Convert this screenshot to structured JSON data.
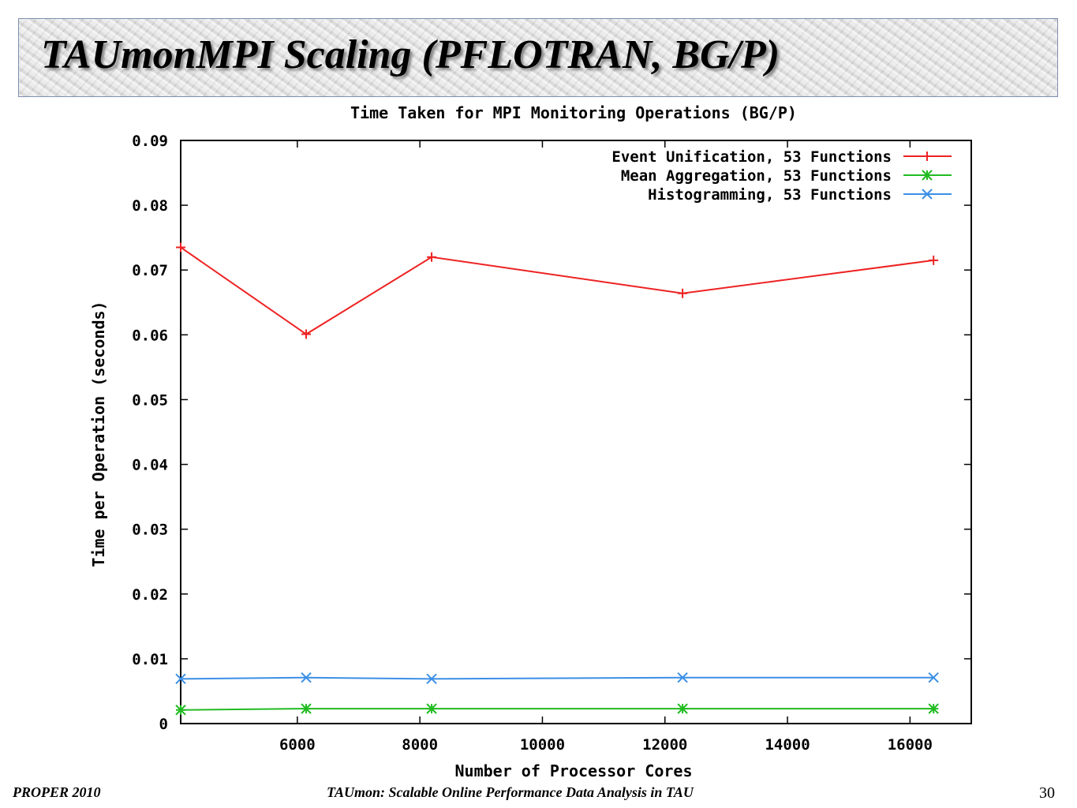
{
  "slide": {
    "title": "TAUmonMPI Scaling (PFLOTRAN, BG/P)",
    "footer_left": "PROPER 2010",
    "footer_center": "TAUmon: Scalable Online Performance Data Analysis in TAU",
    "page_number": "30"
  },
  "chart_data": {
    "type": "line",
    "title": "Time Taken for MPI Monitoring Operations (BG/P)",
    "xlabel": "Number of Processor Cores",
    "ylabel": "Time per Operation (seconds)",
    "xlim": [
      4096,
      17000
    ],
    "ylim": [
      0,
      0.09
    ],
    "xticks": [
      6000,
      8000,
      10000,
      12000,
      14000,
      16000
    ],
    "xtick_labels": [
      "6000",
      "8000",
      "10000",
      "12000",
      "14000",
      "16000"
    ],
    "yticks": [
      0,
      0.01,
      0.02,
      0.03,
      0.04,
      0.05,
      0.06,
      0.07,
      0.08,
      0.09
    ],
    "ytick_labels": [
      "0",
      "0.01",
      "0.02",
      "0.03",
      "0.04",
      "0.05",
      "0.06",
      "0.07",
      "0.08",
      "0.09"
    ],
    "legend_position": "top-right",
    "grid": false,
    "series": [
      {
        "name": "Event Unification, 53 Functions",
        "color": "#ee2222",
        "marker": "plus",
        "x": [
          4096,
          6144,
          8192,
          12288,
          16384
        ],
        "y": [
          0.0735,
          0.0601,
          0.072,
          0.0664,
          0.0715
        ]
      },
      {
        "name": "Mean Aggregation, 53 Functions",
        "color": "#22bb22",
        "marker": "star",
        "x": [
          4096,
          6144,
          8192,
          12288,
          16384
        ],
        "y": [
          0.0021,
          0.0023,
          0.0023,
          0.0023,
          0.0023
        ]
      },
      {
        "name": "Histogramming, 53 Functions",
        "color": "#3b8fe6",
        "marker": "cross",
        "x": [
          4096,
          6144,
          8192,
          12288,
          16384
        ],
        "y": [
          0.0069,
          0.0071,
          0.0069,
          0.0071,
          0.0071
        ]
      }
    ]
  }
}
